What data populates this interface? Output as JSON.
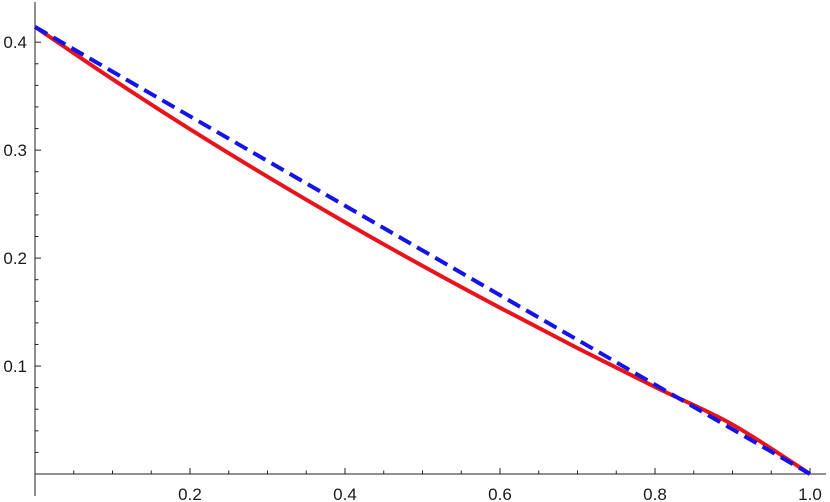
{
  "chart_data": {
    "type": "line",
    "title": "",
    "xlabel": "",
    "ylabel": "",
    "xlim": [
      0,
      1
    ],
    "ylim": [
      0,
      0.415
    ],
    "grid": false,
    "legend": "none",
    "x_ticks": [
      {
        "value": 0.2,
        "label": "0.2"
      },
      {
        "value": 0.4,
        "label": "0.4"
      },
      {
        "value": 0.6,
        "label": "0.6"
      },
      {
        "value": 0.8,
        "label": "0.8"
      },
      {
        "value": 1.0,
        "label": "1.0"
      }
    ],
    "y_ticks": [
      {
        "value": 0.1,
        "label": "0.1"
      },
      {
        "value": 0.2,
        "label": "0.2"
      },
      {
        "value": 0.3,
        "label": "0.3"
      },
      {
        "value": 0.4,
        "label": "0.4"
      }
    ],
    "series": [
      {
        "color": "#e8141b",
        "style": "solid",
        "x": [
          0,
          0.1,
          0.2,
          0.3,
          0.4,
          0.5,
          0.6,
          0.7,
          0.8,
          0.9,
          1.0
        ],
        "y": [
          0.4142,
          0.3657,
          0.3194,
          0.2754,
          0.2332,
          0.1928,
          0.154,
          0.1166,
          0.0806,
          0.0458,
          0.0
        ]
      },
      {
        "color": "#1414e6",
        "style": "dashed",
        "x": [
          0,
          1.0
        ],
        "y": [
          0.4142,
          0.0
        ]
      }
    ]
  }
}
